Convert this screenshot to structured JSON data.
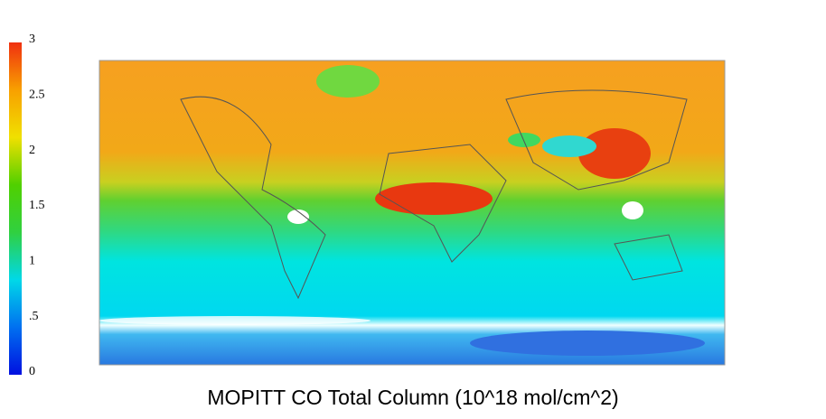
{
  "title": "MOPITT CO Total Column  (10^18 mol/cm^2)",
  "colorbar": {
    "range": [
      0,
      3
    ],
    "ticks": [
      0,
      {
        "value": 0.5,
        "label": ".5"
      },
      1,
      1.5,
      2,
      2.5,
      3
    ],
    "colors": [
      "#0010e0",
      "#0070f0",
      "#00d8e8",
      "#30d040",
      "#50d000",
      "#f0e000",
      "#f8a000",
      "#f03010"
    ]
  }
}
